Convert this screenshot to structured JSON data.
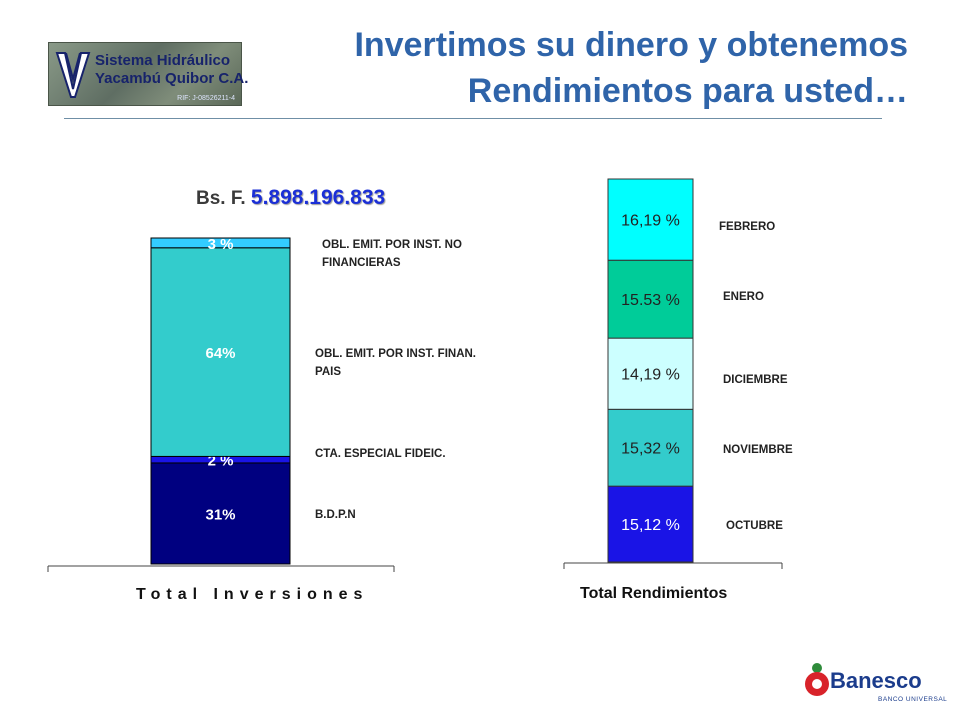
{
  "header": {
    "title_line1": "Invertimos su dinero y obtenemos",
    "title_line2": "Rendimientos para usted…",
    "logo": {
      "line1": "Sistema Hidráulico",
      "line2": "Yacambú Quibor C.A.",
      "rif": "RIF: J-08526211-4"
    }
  },
  "colors": {
    "title": "#2f64a9",
    "navy": "#000080",
    "blue": "#1a14e6",
    "teal": "#33cccc",
    "cyan": "#33ccff",
    "light_cyan": "#ccffff",
    "green": "#00cc99",
    "bright_cyan": "#00ffff"
  },
  "chart_data": [
    {
      "type": "bar",
      "stacked": true,
      "xlabel": "Total Inversiones",
      "amount_prefix": "Bs. F.",
      "amount": "5.898.196.833",
      "segments": [
        {
          "name": "B.D.P.N",
          "value": 31,
          "label": "31%",
          "color": "#000080"
        },
        {
          "name": "CTA. ESPECIAL FIDEIC.",
          "value": 2,
          "label": "2 %",
          "color": "#1a14e6"
        },
        {
          "name": "OBL. EMIT. POR INST. FINAN. PAIS",
          "value": 64,
          "label": "64%",
          "color": "#33cccc"
        },
        {
          "name": "OBL. EMIT. POR INST. NO FINANCIERAS",
          "value": 3,
          "label": "3 %",
          "color": "#33ccff"
        }
      ],
      "legend_lines": {
        "no_financieras": [
          "OBL. EMIT. POR INST. NO",
          "FINANCIERAS"
        ],
        "finan_pais": [
          "OBL. EMIT. POR INST. FINAN.",
          "PAIS"
        ],
        "fideic": [
          "CTA. ESPECIAL FIDEIC."
        ],
        "bdpn": [
          "B.D.P.N"
        ]
      }
    },
    {
      "type": "bar",
      "stacked": true,
      "xlabel": "Total Rendimientos",
      "segments": [
        {
          "name": "OCTUBRE",
          "value": 15.12,
          "label": "15,12 %",
          "color": "#1a14e6",
          "text_color": "#ffffff"
        },
        {
          "name": "NOVIEMBRE",
          "value": 15.32,
          "label": "15,32 %",
          "color": "#33cccc",
          "text_color": "#222222"
        },
        {
          "name": "DICIEMBRE",
          "value": 14.19,
          "label": "14,19 %",
          "color": "#ccffff",
          "text_color": "#222222"
        },
        {
          "name": "ENERO",
          "value": 15.53,
          "label": "15.53 %",
          "color": "#00cc99",
          "text_color": "#222222"
        },
        {
          "name": "FEBRERO",
          "value": 16.19,
          "label": "16,19 %",
          "color": "#00ffff",
          "text_color": "#222222"
        }
      ]
    }
  ],
  "footer": {
    "brand": "Banesco",
    "brand_sub": "BANCO UNIVERSAL"
  }
}
